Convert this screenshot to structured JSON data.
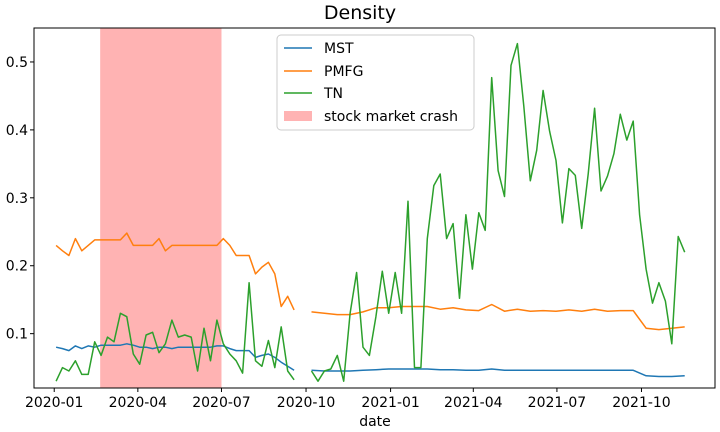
{
  "chart_data": {
    "type": "line",
    "title": "Density",
    "xlabel": "date",
    "ylabel": "",
    "ylim": [
      0.02,
      0.55
    ],
    "xlim": [
      "2019-12-10",
      "2021-12-20"
    ],
    "x_ticks": [
      "2020-01",
      "2020-04",
      "2020-07",
      "2020-10",
      "2021-01",
      "2021-04",
      "2021-07",
      "2021-10"
    ],
    "x_tick_dates": [
      "2020-01-01",
      "2020-04-01",
      "2020-07-01",
      "2020-10-01",
      "2021-01-01",
      "2021-04-01",
      "2021-07-01",
      "2021-10-01"
    ],
    "y_ticks": [
      "0.1",
      "0.2",
      "0.3",
      "0.4",
      "0.5"
    ],
    "y_tick_values": [
      0.1,
      0.2,
      0.3,
      0.4,
      0.5
    ],
    "grid": false,
    "legend_position": "top-center",
    "shaded_region": {
      "label": "stock market crash",
      "start": "2020-02-20",
      "end": "2020-07-01",
      "color": "#ffb3b3"
    },
    "series": [
      {
        "name": "MST",
        "color": "#1f77b4",
        "segments": [
          {
            "x": [
              "2020-01-03",
              "2020-01-10",
              "2020-01-17",
              "2020-01-24",
              "2020-01-31",
              "2020-02-07",
              "2020-02-14",
              "2020-02-21",
              "2020-02-28",
              "2020-03-06",
              "2020-03-13",
              "2020-03-20",
              "2020-03-27",
              "2020-04-03",
              "2020-04-10",
              "2020-04-17",
              "2020-04-24",
              "2020-05-01",
              "2020-05-08",
              "2020-05-15",
              "2020-05-22",
              "2020-05-29",
              "2020-06-05",
              "2020-06-12",
              "2020-06-19",
              "2020-06-26",
              "2020-07-03",
              "2020-07-10",
              "2020-07-17",
              "2020-07-24",
              "2020-07-31",
              "2020-08-07",
              "2020-08-14",
              "2020-08-21",
              "2020-08-28",
              "2020-09-04",
              "2020-09-11",
              "2020-09-18"
            ],
            "y": [
              0.08,
              0.078,
              0.075,
              0.082,
              0.078,
              0.082,
              0.08,
              0.083,
              0.083,
              0.083,
              0.083,
              0.085,
              0.083,
              0.08,
              0.08,
              0.078,
              0.08,
              0.08,
              0.078,
              0.08,
              0.08,
              0.08,
              0.08,
              0.08,
              0.08,
              0.082,
              0.082,
              0.078,
              0.075,
              0.075,
              0.075,
              0.065,
              0.068,
              0.07,
              0.065,
              0.058,
              0.052,
              0.046
            ]
          },
          {
            "x": [
              "2020-10-07",
              "2020-10-21",
              "2020-11-04",
              "2020-11-18",
              "2020-12-02",
              "2020-12-16",
              "2020-12-30",
              "2021-01-13",
              "2021-01-27",
              "2021-02-10",
              "2021-02-24",
              "2021-03-10",
              "2021-03-24",
              "2021-04-07",
              "2021-04-21",
              "2021-05-05",
              "2021-05-19",
              "2021-06-02",
              "2021-06-16",
              "2021-06-30",
              "2021-07-14",
              "2021-07-28",
              "2021-08-11",
              "2021-08-25",
              "2021-09-08",
              "2021-09-22",
              "2021-10-06",
              "2021-10-20",
              "2021-11-03",
              "2021-11-17"
            ],
            "y": [
              0.046,
              0.045,
              0.045,
              0.045,
              0.046,
              0.047,
              0.048,
              0.048,
              0.048,
              0.048,
              0.047,
              0.047,
              0.046,
              0.046,
              0.048,
              0.046,
              0.046,
              0.046,
              0.046,
              0.046,
              0.046,
              0.046,
              0.046,
              0.046,
              0.046,
              0.046,
              0.038,
              0.037,
              0.037,
              0.038
            ]
          }
        ]
      },
      {
        "name": "PMFG",
        "color": "#ff7f0e",
        "segments": [
          {
            "x": [
              "2020-01-03",
              "2020-01-10",
              "2020-01-17",
              "2020-01-24",
              "2020-01-31",
              "2020-02-07",
              "2020-02-14",
              "2020-02-21",
              "2020-02-28",
              "2020-03-06",
              "2020-03-13",
              "2020-03-20",
              "2020-03-27",
              "2020-04-03",
              "2020-04-10",
              "2020-04-17",
              "2020-04-24",
              "2020-05-01",
              "2020-05-08",
              "2020-05-15",
              "2020-05-22",
              "2020-05-29",
              "2020-06-05",
              "2020-06-12",
              "2020-06-19",
              "2020-06-26",
              "2020-07-03",
              "2020-07-10",
              "2020-07-17",
              "2020-07-24",
              "2020-07-31",
              "2020-08-07",
              "2020-08-14",
              "2020-08-21",
              "2020-08-28",
              "2020-09-04",
              "2020-09-11",
              "2020-09-18"
            ],
            "y": [
              0.23,
              0.222,
              0.215,
              0.24,
              0.222,
              0.23,
              0.238,
              0.238,
              0.238,
              0.238,
              0.238,
              0.248,
              0.23,
              0.23,
              0.23,
              0.23,
              0.24,
              0.222,
              0.23,
              0.23,
              0.23,
              0.23,
              0.23,
              0.23,
              0.23,
              0.23,
              0.24,
              0.23,
              0.215,
              0.215,
              0.215,
              0.188,
              0.198,
              0.205,
              0.188,
              0.14,
              0.155,
              0.135
            ]
          },
          {
            "x": [
              "2020-10-07",
              "2020-10-21",
              "2020-11-04",
              "2020-11-18",
              "2020-12-02",
              "2020-12-16",
              "2020-12-30",
              "2021-01-13",
              "2021-01-27",
              "2021-02-10",
              "2021-02-24",
              "2021-03-10",
              "2021-03-24",
              "2021-04-07",
              "2021-04-21",
              "2021-05-05",
              "2021-05-19",
              "2021-06-02",
              "2021-06-16",
              "2021-06-30",
              "2021-07-14",
              "2021-07-28",
              "2021-08-11",
              "2021-08-25",
              "2021-09-08",
              "2021-09-22",
              "2021-10-06",
              "2021-10-20",
              "2021-11-03",
              "2021-11-17"
            ],
            "y": [
              0.132,
              0.13,
              0.128,
              0.128,
              0.132,
              0.138,
              0.138,
              0.14,
              0.14,
              0.14,
              0.136,
              0.138,
              0.135,
              0.134,
              0.143,
              0.133,
              0.136,
              0.133,
              0.134,
              0.133,
              0.135,
              0.133,
              0.136,
              0.133,
              0.134,
              0.134,
              0.108,
              0.106,
              0.108,
              0.11
            ]
          }
        ]
      },
      {
        "name": "TN",
        "color": "#2ca02c",
        "segments": [
          {
            "x": [
              "2020-01-03",
              "2020-01-10",
              "2020-01-17",
              "2020-01-24",
              "2020-01-31",
              "2020-02-07",
              "2020-02-14",
              "2020-02-21",
              "2020-02-28",
              "2020-03-06",
              "2020-03-13",
              "2020-03-20",
              "2020-03-27",
              "2020-04-03",
              "2020-04-10",
              "2020-04-17",
              "2020-04-24",
              "2020-05-01",
              "2020-05-08",
              "2020-05-15",
              "2020-05-22",
              "2020-05-29",
              "2020-06-05",
              "2020-06-12",
              "2020-06-19",
              "2020-06-26",
              "2020-07-03",
              "2020-07-10",
              "2020-07-17",
              "2020-07-24",
              "2020-07-31",
              "2020-08-07",
              "2020-08-14",
              "2020-08-21",
              "2020-08-28",
              "2020-09-04",
              "2020-09-11",
              "2020-09-18"
            ],
            "y": [
              0.03,
              0.05,
              0.045,
              0.06,
              0.04,
              0.04,
              0.088,
              0.068,
              0.095,
              0.088,
              0.13,
              0.125,
              0.07,
              0.055,
              0.098,
              0.102,
              0.072,
              0.085,
              0.12,
              0.095,
              0.098,
              0.095,
              0.045,
              0.108,
              0.06,
              0.12,
              0.085,
              0.07,
              0.06,
              0.042,
              0.175,
              0.06,
              0.052,
              0.09,
              0.05,
              0.11,
              0.045,
              0.032
            ]
          },
          {
            "x": [
              "2020-10-07",
              "2020-10-14",
              "2020-10-21",
              "2020-10-28",
              "2020-11-04",
              "2020-11-11",
              "2020-11-18",
              "2020-11-25",
              "2020-12-02",
              "2020-12-09",
              "2020-12-16",
              "2020-12-23",
              "2020-12-30",
              "2021-01-06",
              "2021-01-13",
              "2021-01-20",
              "2021-01-27",
              "2021-02-03",
              "2021-02-10",
              "2021-02-17",
              "2021-02-24",
              "2021-03-03",
              "2021-03-10",
              "2021-03-17",
              "2021-03-24",
              "2021-03-31",
              "2021-04-07",
              "2021-04-14",
              "2021-04-21",
              "2021-04-28",
              "2021-05-05",
              "2021-05-12",
              "2021-05-19",
              "2021-05-26",
              "2021-06-02",
              "2021-06-09",
              "2021-06-16",
              "2021-06-23",
              "2021-06-30",
              "2021-07-07",
              "2021-07-14",
              "2021-07-21",
              "2021-07-28",
              "2021-08-04",
              "2021-08-11",
              "2021-08-18",
              "2021-08-25",
              "2021-09-01",
              "2021-09-08",
              "2021-09-15",
              "2021-09-22",
              "2021-09-29",
              "2021-10-06",
              "2021-10-13",
              "2021-10-20",
              "2021-10-27",
              "2021-11-03",
              "2021-11-10",
              "2021-11-17"
            ],
            "y": [
              0.045,
              0.03,
              0.045,
              0.048,
              0.068,
              0.03,
              0.13,
              0.19,
              0.08,
              0.068,
              0.125,
              0.192,
              0.13,
              0.19,
              0.13,
              0.295,
              0.05,
              0.05,
              0.24,
              0.318,
              0.335,
              0.24,
              0.262,
              0.152,
              0.275,
              0.195,
              0.278,
              0.252,
              0.477,
              0.34,
              0.302,
              0.495,
              0.527,
              0.435,
              0.325,
              0.37,
              0.458,
              0.398,
              0.355,
              0.263,
              0.343,
              0.333,
              0.255,
              0.335,
              0.432,
              0.31,
              0.332,
              0.365,
              0.423,
              0.385,
              0.413,
              0.275,
              0.195,
              0.145,
              0.175,
              0.148,
              0.085,
              0.243,
              0.22
            ]
          }
        ]
      }
    ]
  }
}
